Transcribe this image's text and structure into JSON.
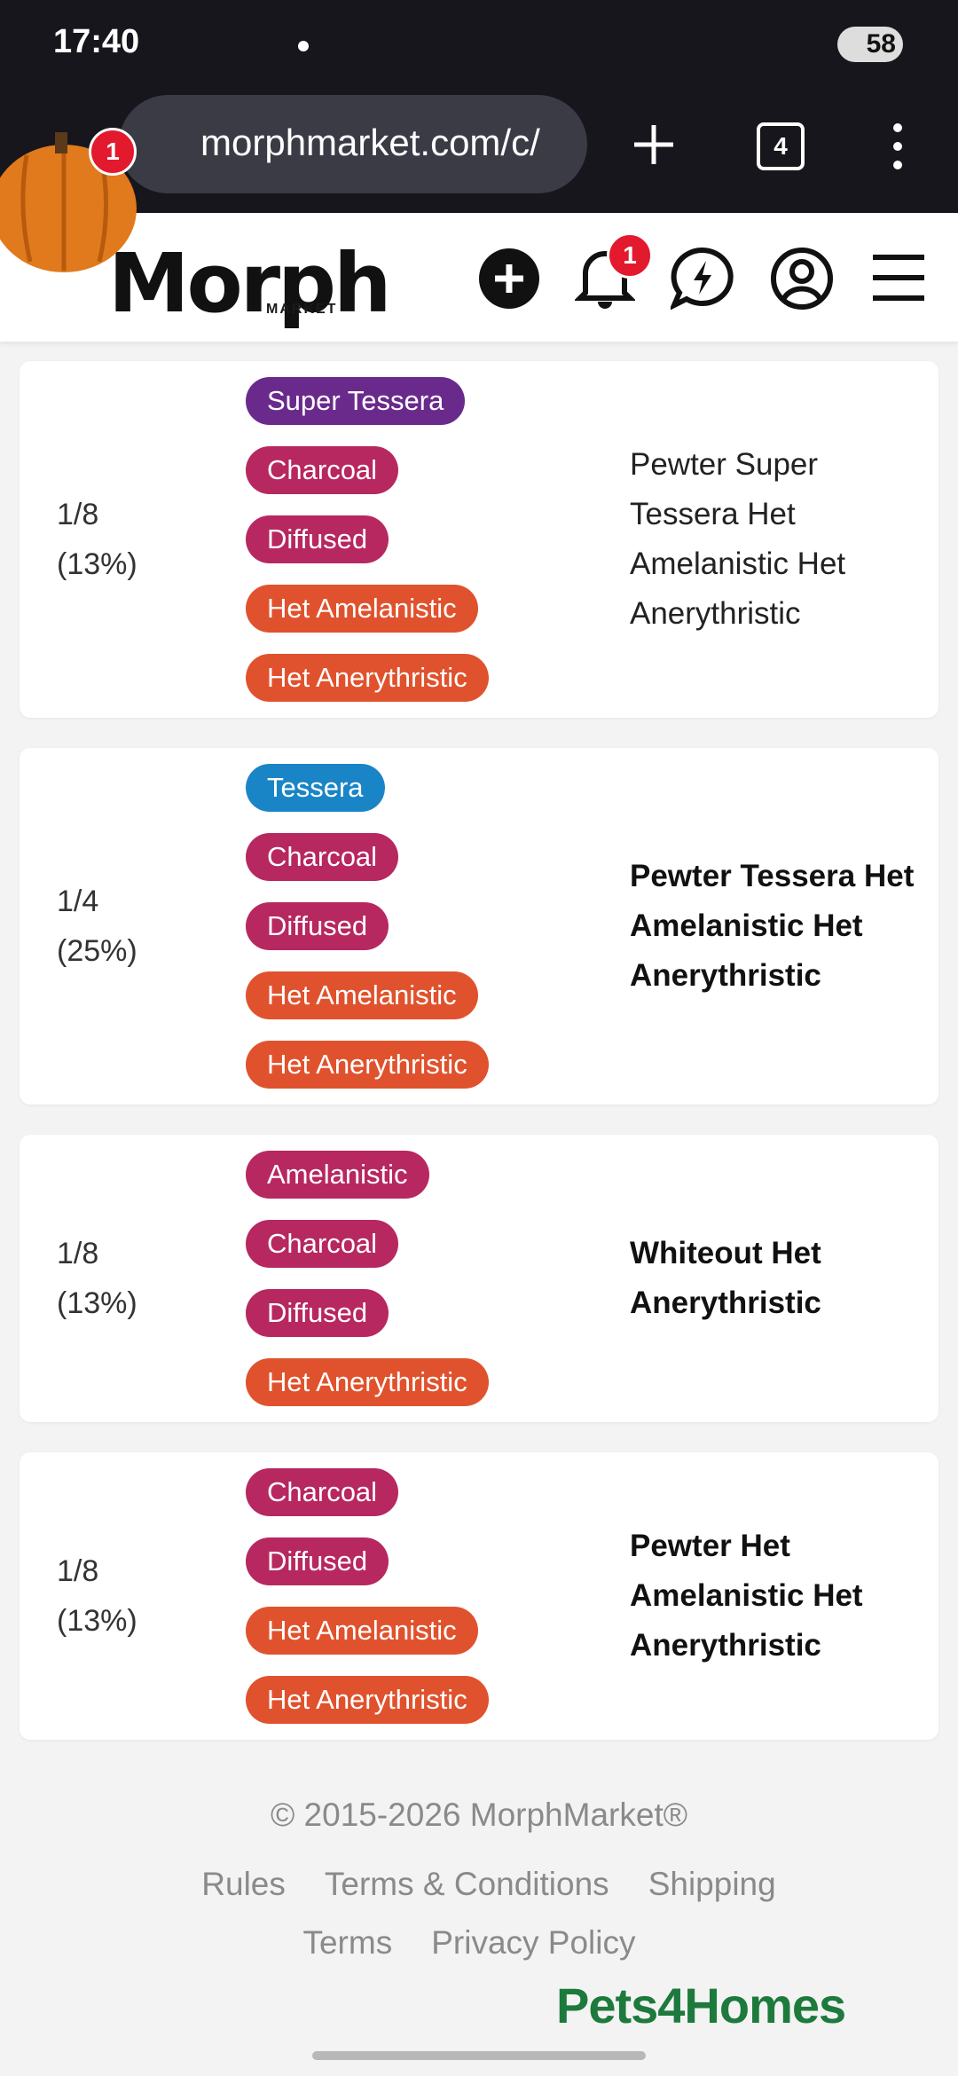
{
  "status_bar": {
    "time": "17:40",
    "battery": "58"
  },
  "browser": {
    "url": "morphmarket.com/c/",
    "tab_count": "4",
    "badge": "1"
  },
  "site_header": {
    "logo": "Morph",
    "logo_sub": "MARKET",
    "notification_count": "1"
  },
  "results": [
    {
      "odds": "1/8",
      "percent": "(13%)",
      "bold": false,
      "name": "Pewter Super Tessera Het Amelanistic Het Anerythristic",
      "traits": [
        {
          "label": "Super Tessera",
          "color": "#6a2a8c"
        },
        {
          "label": "Charcoal",
          "color": "#b72760"
        },
        {
          "label": "Diffused",
          "color": "#b72760"
        },
        {
          "label": "Het Amelanistic",
          "color": "#e0522d"
        },
        {
          "label": "Het Anerythristic",
          "color": "#e0522d"
        }
      ]
    },
    {
      "odds": "1/4",
      "percent": "(25%)",
      "bold": true,
      "name": "Pewter Tessera Het Amelanistic Het Anerythristic",
      "traits": [
        {
          "label": "Tessera",
          "color": "#1a85c6"
        },
        {
          "label": "Charcoal",
          "color": "#b72760"
        },
        {
          "label": "Diffused",
          "color": "#b72760"
        },
        {
          "label": "Het Amelanistic",
          "color": "#e0522d"
        },
        {
          "label": "Het Anerythristic",
          "color": "#e0522d"
        }
      ]
    },
    {
      "odds": "1/8",
      "percent": "(13%)",
      "bold": true,
      "name": "Whiteout Het Anerythristic",
      "traits": [
        {
          "label": "Amelanistic",
          "color": "#b72760"
        },
        {
          "label": "Charcoal",
          "color": "#b72760"
        },
        {
          "label": "Diffused",
          "color": "#b72760"
        },
        {
          "label": "Het Anerythristic",
          "color": "#e0522d"
        }
      ]
    },
    {
      "odds": "1/8",
      "percent": "(13%)",
      "bold": true,
      "name": "Pewter Het Amelanistic Het Anerythristic",
      "traits": [
        {
          "label": "Charcoal",
          "color": "#b72760"
        },
        {
          "label": "Diffused",
          "color": "#b72760"
        },
        {
          "label": "Het Amelanistic",
          "color": "#e0522d"
        },
        {
          "label": "Het Anerythristic",
          "color": "#e0522d"
        }
      ]
    }
  ],
  "footer": {
    "copyright": "© 2015-2026 MorphMarket®",
    "links": [
      "Rules",
      "Terms & Conditions",
      "Shipping Terms",
      "Privacy Policy"
    ],
    "partner": "Pets4Homes"
  }
}
